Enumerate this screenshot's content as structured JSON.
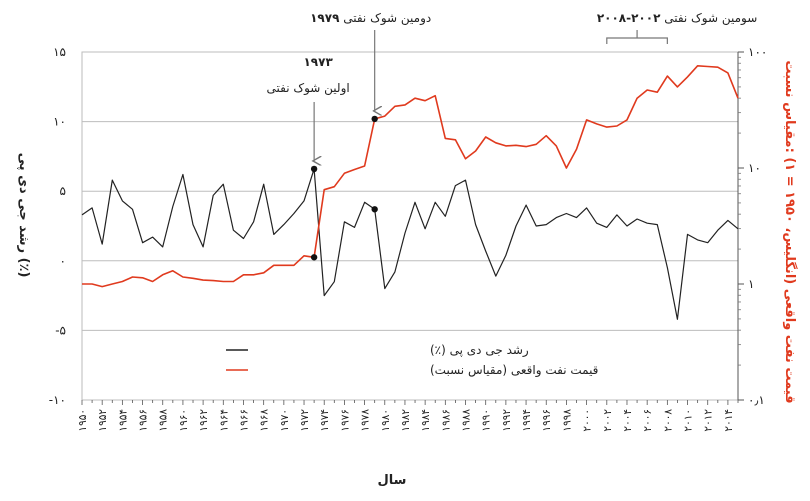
{
  "chart_data": {
    "type": "line",
    "xlabel": "سال",
    "ylabel_left": "رشد جی دی پی (٪)",
    "ylabel_right": "قیمت نفت واقعی (انگلیس، ۱۹۵۰ = ۱) :مقیاس نسبت",
    "ylim_left": [
      -10,
      15
    ],
    "ylim_right": [
      0.1,
      100
    ],
    "right_scale": "log",
    "yticks_left": [
      {
        "v": 15,
        "label": "۱۵"
      },
      {
        "v": 10,
        "label": "۱۰"
      },
      {
        "v": 5,
        "label": "۵"
      },
      {
        "v": 0,
        "label": "۰"
      },
      {
        "v": -5,
        "label": "-۵"
      },
      {
        "v": -10,
        "label": "-۱۰"
      }
    ],
    "yticks_right": [
      {
        "v": 100,
        "label": "۱۰۰"
      },
      {
        "v": 10,
        "label": "۱۰"
      },
      {
        "v": 1,
        "label": "۱"
      },
      {
        "v": 0.1,
        "label": "۰٫۱"
      }
    ],
    "xlim": [
      1950,
      2015
    ],
    "xticks": [
      {
        "v": 1950,
        "label": "۱۹۵۰"
      },
      {
        "v": 1952,
        "label": "۱۹۵۲"
      },
      {
        "v": 1954,
        "label": "۱۹۵۴"
      },
      {
        "v": 1956,
        "label": "۱۹۵۶"
      },
      {
        "v": 1958,
        "label": "۱۹۵۸"
      },
      {
        "v": 1960,
        "label": "۱۹۶۰"
      },
      {
        "v": 1962,
        "label": "۱۹۶۲"
      },
      {
        "v": 1964,
        "label": "۱۹۶۴"
      },
      {
        "v": 1966,
        "label": "۱۹۶۶"
      },
      {
        "v": 1968,
        "label": "۱۹۶۸"
      },
      {
        "v": 1970,
        "label": "۱۹۷۰"
      },
      {
        "v": 1972,
        "label": "۱۹۷۲"
      },
      {
        "v": 1974,
        "label": "۱۹۷۴"
      },
      {
        "v": 1976,
        "label": "۱۹۷۶"
      },
      {
        "v": 1978,
        "label": "۱۹۷۸"
      },
      {
        "v": 1980,
        "label": "۱۹۸۰"
      },
      {
        "v": 1982,
        "label": "۱۹۸۲"
      },
      {
        "v": 1984,
        "label": "۱۹۸۴"
      },
      {
        "v": 1986,
        "label": "۱۹۸۶"
      },
      {
        "v": 1988,
        "label": "۱۹۸۸"
      },
      {
        "v": 1990,
        "label": "۱۹۹۰"
      },
      {
        "v": 1992,
        "label": "۱۹۹۲"
      },
      {
        "v": 1994,
        "label": "۱۹۹۴"
      },
      {
        "v": 1996,
        "label": "۱۹۹۶"
      },
      {
        "v": 1998,
        "label": "۱۹۹۸"
      },
      {
        "v": 2000,
        "label": "۲۰۰۰"
      },
      {
        "v": 2002,
        "label": "۲۰۰۲"
      },
      {
        "v": 2004,
        "label": "۲۰۰۴"
      },
      {
        "v": 2006,
        "label": "۲۰۰۶"
      },
      {
        "v": 2008,
        "label": "۲۰۰۸"
      },
      {
        "v": 2010,
        "label": "۲۰۱۰"
      },
      {
        "v": 2012,
        "label": "۲۰۱۲"
      },
      {
        "v": 2014,
        "label": "۲۰۱۴"
      }
    ],
    "grid": true,
    "legend_position": "bottom-center",
    "series": [
      {
        "name": "رشد جی دی پی (٪)",
        "axis": "left",
        "color": "#222222",
        "x": [
          1950,
          1951,
          1952,
          1953,
          1954,
          1955,
          1956,
          1957,
          1958,
          1959,
          1960,
          1961,
          1962,
          1963,
          1964,
          1965,
          1966,
          1967,
          1968,
          1969,
          1970,
          1971,
          1972,
          1973,
          1974,
          1975,
          1976,
          1977,
          1978,
          1979,
          1980,
          1981,
          1982,
          1983,
          1984,
          1985,
          1986,
          1987,
          1988,
          1989,
          1990,
          1991,
          1992,
          1993,
          1994,
          1995,
          1996,
          1997,
          1998,
          1999,
          2000,
          2001,
          2002,
          2003,
          2004,
          2005,
          2006,
          2007,
          2008,
          2009,
          2010,
          2011,
          2012,
          2013,
          2014,
          2015
        ],
        "values": [
          3.3,
          3.8,
          1.2,
          5.8,
          4.3,
          3.7,
          1.3,
          1.7,
          1.0,
          3.9,
          6.2,
          2.6,
          1.0,
          4.7,
          5.5,
          2.2,
          1.6,
          2.8,
          5.5,
          1.9,
          2.6,
          3.4,
          4.3,
          6.6,
          -2.5,
          -1.5,
          2.8,
          2.4,
          4.2,
          3.7,
          -2.0,
          -0.8,
          2.0,
          4.2,
          2.3,
          4.2,
          3.2,
          5.4,
          5.8,
          2.6,
          0.7,
          -1.1,
          0.4,
          2.5,
          4.0,
          2.5,
          2.6,
          3.1,
          3.4,
          3.1,
          3.8,
          2.7,
          2.4,
          3.3,
          2.5,
          3.0,
          2.7,
          2.6,
          -0.5,
          -4.2,
          1.9,
          1.5,
          1.3,
          2.2,
          2.9,
          2.3
        ]
      },
      {
        "name": "قیمت نفت واقعی (مقیاس نسبت)",
        "axis": "right",
        "color": "#e03a1e",
        "x": [
          1950,
          1951,
          1952,
          1953,
          1954,
          1955,
          1956,
          1957,
          1958,
          1959,
          1960,
          1961,
          1962,
          1963,
          1964,
          1965,
          1966,
          1967,
          1968,
          1969,
          1970,
          1971,
          1972,
          1973,
          1974,
          1975,
          1976,
          1977,
          1978,
          1979,
          1980,
          1981,
          1982,
          1983,
          1984,
          1985,
          1986,
          1987,
          1988,
          1989,
          1990,
          1991,
          1992,
          1993,
          1994,
          1995,
          1996,
          1997,
          1998,
          1999,
          2000,
          2001,
          2002,
          2003,
          2004,
          2005,
          2006,
          2007,
          2008,
          2009,
          2010,
          2011,
          2012,
          2013,
          2014,
          2015
        ],
        "values": [
          1.0,
          1.0,
          0.95,
          1.0,
          1.05,
          1.15,
          1.13,
          1.05,
          1.2,
          1.3,
          1.15,
          1.12,
          1.08,
          1.07,
          1.05,
          1.05,
          1.2,
          1.2,
          1.25,
          1.45,
          1.45,
          1.45,
          1.75,
          1.7,
          6.5,
          6.9,
          9.0,
          9.7,
          10.4,
          26.5,
          28.0,
          34.0,
          35.0,
          40.0,
          38.0,
          42.0,
          18.0,
          17.5,
          12.0,
          14.0,
          18.5,
          16.5,
          15.5,
          15.7,
          15.3,
          16.0,
          19.0,
          15.5,
          10.0,
          14.5,
          26.0,
          24.0,
          22.5,
          23.0,
          26.0,
          40.0,
          47.0,
          45.0,
          62.0,
          50.0,
          61.0,
          76.0,
          75.0,
          74.0,
          66.0,
          40.0
        ]
      }
    ],
    "highlight_points": [
      {
        "axis": "left",
        "x": 1973,
        "y": 6.6
      },
      {
        "axis": "right",
        "x": 1973,
        "y": 1.7
      },
      {
        "axis": "right",
        "x": 1979,
        "y": 26.5
      },
      {
        "axis": "left",
        "x": 1979,
        "y": 3.7
      }
    ],
    "annotations": [
      {
        "id": "shock-1973",
        "year_label": "۱۹۷۳",
        "text": "اولین شوک نفتی"
      },
      {
        "id": "shock-1979",
        "year_label": "۱۹۷۹",
        "text": "دومین شوک نفتی"
      },
      {
        "id": "shock-2002-2008",
        "year_label": "۲۰۰۲-۲۰۰۸",
        "text": "سومین شوک نفتی"
      }
    ]
  }
}
